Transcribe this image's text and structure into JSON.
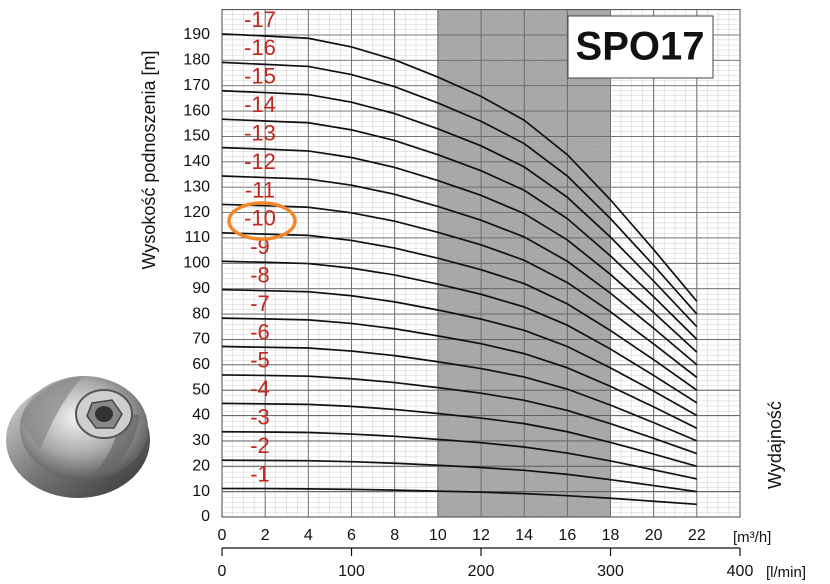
{
  "chart_data": {
    "type": "line",
    "title": "SPO17",
    "ylabel": "Wysokość podnoszenia [m]",
    "xlabel": "[m³/h]",
    "x2label": "[l/min]",
    "side_label": "Wydajność",
    "x": [
      0,
      2,
      4,
      6,
      8,
      10,
      12,
      14,
      16,
      18,
      20,
      22
    ],
    "xlim": [
      0,
      24
    ],
    "xticks": [
      0,
      2,
      4,
      6,
      8,
      10,
      12,
      14,
      16,
      18,
      20,
      22
    ],
    "x2lim": [
      0,
      400
    ],
    "x2ticks": [
      0,
      100,
      200,
      300,
      400
    ],
    "ylim": [
      0,
      200
    ],
    "yticks": [
      0,
      10,
      20,
      30,
      40,
      50,
      60,
      70,
      80,
      90,
      100,
      110,
      120,
      130,
      140,
      150,
      160,
      170,
      180,
      190
    ],
    "grid": true,
    "highlight_xrange": [
      10,
      18
    ],
    "line_color": "#111111",
    "label_color": "#c0281e",
    "series": [
      {
        "name": "-1",
        "values": [
          11.2,
          11.2,
          11.1,
          10.9,
          10.6,
          10.2,
          9.8,
          9.2,
          8.4,
          7.4,
          6.2,
          5.0
        ]
      },
      {
        "name": "-2",
        "values": [
          22.4,
          22.3,
          22.2,
          21.8,
          21.2,
          20.4,
          19.5,
          18.4,
          16.8,
          14.7,
          12.4,
          10
        ]
      },
      {
        "name": "-3",
        "values": [
          33.6,
          33.5,
          33.3,
          32.7,
          31.8,
          30.6,
          29.3,
          27.6,
          25.2,
          22.1,
          18.6,
          15
        ]
      },
      {
        "name": "-4",
        "values": [
          44.8,
          44.6,
          44.4,
          43.6,
          42.4,
          40.8,
          39,
          36.8,
          33.6,
          29.4,
          24.8,
          20
        ]
      },
      {
        "name": "-5",
        "values": [
          56,
          55.8,
          55.5,
          54.5,
          53,
          51,
          48.8,
          46,
          42,
          36.8,
          31,
          25
        ]
      },
      {
        "name": "-6",
        "values": [
          67.2,
          66.9,
          66.6,
          65.4,
          63.6,
          61.2,
          58.5,
          55.2,
          50.4,
          44.1,
          37.2,
          30
        ]
      },
      {
        "name": "-7",
        "values": [
          78.4,
          78.1,
          77.7,
          76.3,
          74.2,
          71.4,
          68.3,
          64.4,
          58.8,
          51.5,
          43.4,
          35
        ]
      },
      {
        "name": "-8",
        "values": [
          89.6,
          89.2,
          88.8,
          87.2,
          84.8,
          81.6,
          78,
          73.6,
          67.2,
          58.8,
          49.6,
          40
        ]
      },
      {
        "name": "-9",
        "values": [
          100.8,
          100.4,
          99.9,
          98.1,
          95.4,
          91.8,
          87.8,
          82.8,
          75.6,
          66.2,
          55.8,
          45
        ]
      },
      {
        "name": "-10",
        "values": [
          112,
          111.5,
          111,
          109,
          106,
          102,
          97.5,
          92,
          84,
          73.5,
          62,
          50
        ]
      },
      {
        "name": "-11",
        "values": [
          123.2,
          122.7,
          122.1,
          119.9,
          116.6,
          112.2,
          107.3,
          101.2,
          92.4,
          80.9,
          68.2,
          55
        ]
      },
      {
        "name": "-12",
        "values": [
          134.4,
          133.8,
          133.2,
          130.8,
          127.2,
          122.4,
          117,
          110.4,
          100.8,
          88.2,
          74.4,
          60
        ]
      },
      {
        "name": "-13",
        "values": [
          145.6,
          145,
          144.3,
          141.7,
          137.8,
          132.6,
          126.8,
          119.6,
          109.2,
          95.6,
          80.6,
          65
        ]
      },
      {
        "name": "-14",
        "values": [
          156.8,
          156.1,
          155.4,
          152.6,
          148.4,
          142.8,
          136.5,
          128.8,
          117.6,
          102.9,
          86.8,
          70
        ]
      },
      {
        "name": "-15",
        "values": [
          168,
          167.3,
          166.5,
          163.5,
          159,
          153,
          146.3,
          138,
          126,
          110.3,
          93,
          75
        ]
      },
      {
        "name": "-16",
        "values": [
          179.2,
          178.4,
          177.6,
          174.4,
          169.6,
          163.2,
          156,
          147.2,
          134.4,
          117.6,
          99.2,
          80
        ]
      },
      {
        "name": "-17",
        "values": [
          190.4,
          189.6,
          188.7,
          185.3,
          180.2,
          173.4,
          165.8,
          156.4,
          142.8,
          125,
          105.4,
          85
        ]
      }
    ]
  }
}
